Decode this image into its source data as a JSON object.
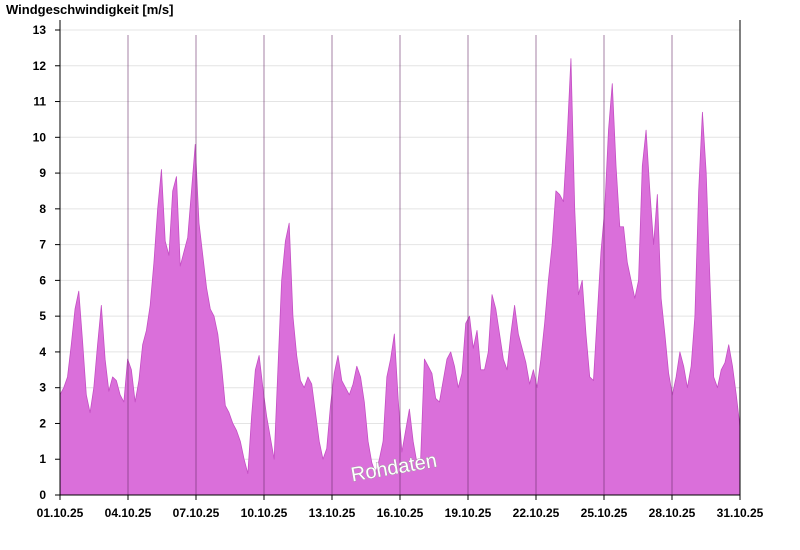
{
  "chart_data": {
    "type": "area",
    "title": "Windgeschwindigkeit [m/s]",
    "watermark": "Rohdaten",
    "ylim": [
      0,
      13
    ],
    "y_ticks": [
      0,
      1,
      2,
      3,
      4,
      5,
      6,
      7,
      8,
      9,
      10,
      11,
      12,
      13
    ],
    "x_ticks": [
      "01.10.25",
      "04.10.25",
      "07.10.25",
      "10.10.25",
      "13.10.25",
      "16.10.25",
      "19.10.25",
      "22.10.25",
      "25.10.25",
      "28.10.25",
      "31.10.25"
    ],
    "x_start": "01.10.25",
    "x_end": "31.10.25",
    "grid": true,
    "fill_color": "#da6fda",
    "stroke_color": "#c44fc4",
    "series": [
      {
        "values": [
          2.8,
          3.0,
          3.3,
          4.2,
          5.2,
          5.7,
          4.3,
          2.8,
          2.3,
          3.0,
          4.2,
          5.3,
          3.8,
          2.9,
          3.3,
          3.2,
          2.8,
          2.6,
          3.8,
          3.5,
          2.6,
          3.2,
          4.2,
          4.6,
          5.3,
          6.5,
          8.0,
          9.1,
          7.1,
          6.7,
          8.5,
          8.9,
          6.4,
          6.8,
          7.2,
          8.5,
          9.8,
          7.6,
          6.7,
          5.8,
          5.2,
          5.0,
          4.5,
          3.6,
          2.5,
          2.3,
          2.0,
          1.8,
          1.5,
          1.0,
          0.6,
          2.2,
          3.5,
          3.9,
          3.0,
          2.2,
          1.6,
          1.0,
          3.5,
          6.0,
          7.1,
          7.6,
          5.0,
          3.9,
          3.2,
          3.0,
          3.3,
          3.1,
          2.3,
          1.5,
          1.0,
          1.3,
          2.5,
          3.4,
          3.9,
          3.2,
          3.0,
          2.8,
          3.1,
          3.6,
          3.3,
          2.6,
          1.5,
          0.9,
          0.6,
          1.0,
          1.5,
          3.3,
          3.8,
          4.5,
          2.7,
          1.2,
          1.8,
          2.4,
          1.5,
          0.9,
          1.0,
          3.8,
          3.6,
          3.4,
          2.7,
          2.6,
          3.2,
          3.8,
          4.0,
          3.6,
          3.0,
          3.4,
          4.8,
          5.0,
          4.1,
          4.6,
          3.5,
          3.5,
          4.0,
          5.6,
          5.2,
          4.5,
          3.8,
          3.5,
          4.5,
          5.3,
          4.5,
          4.1,
          3.7,
          3.1,
          3.5,
          3.0,
          3.8,
          4.8,
          6.0,
          7.0,
          8.5,
          8.4,
          8.2,
          10.0,
          12.2,
          8.0,
          5.6,
          6.0,
          4.5,
          3.3,
          3.2,
          5.0,
          6.8,
          8.0,
          10.2,
          11.5,
          9.2,
          7.5,
          7.5,
          6.5,
          6.0,
          5.5,
          6.0,
          9.2,
          10.2,
          8.5,
          7.0,
          8.4,
          5.5,
          4.5,
          3.4,
          2.8,
          3.3,
          4.0,
          3.6,
          3.0,
          3.6,
          5.0,
          8.5,
          10.7,
          9.0,
          6.0,
          3.3,
          3.0,
          3.5,
          3.7,
          4.2,
          3.6,
          2.8,
          1.9
        ]
      }
    ]
  }
}
